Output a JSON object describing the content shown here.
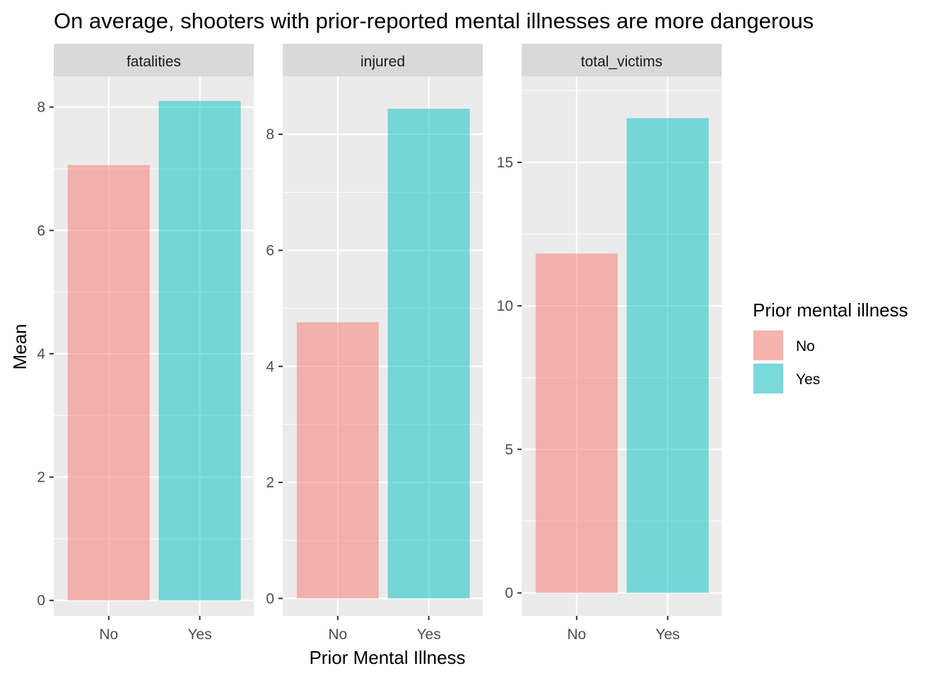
{
  "chart_data": {
    "type": "bar",
    "title": "On average, shooters with prior-reported mental illnesses are more dangerous",
    "xlabel": "Prior Mental Illness",
    "ylabel": "Mean",
    "categories": [
      "No",
      "Yes"
    ],
    "grid": true,
    "legend_position": "right",
    "legend": {
      "title": "Prior mental illness",
      "entries": [
        {
          "label": "No",
          "color": "#F8766D"
        },
        {
          "label": "Yes",
          "color": "#00BFC4"
        }
      ]
    },
    "facets": [
      {
        "strip": "fatalities",
        "ylim": [
          -0.25,
          8.5
        ],
        "ticks": [
          0,
          2,
          4,
          6,
          8
        ],
        "tick_labels": [
          "0",
          "2",
          "4",
          "6",
          "8"
        ],
        "values": [
          7.06,
          8.1
        ]
      },
      {
        "strip": "injured",
        "ylim": [
          -0.3,
          9.0
        ],
        "ticks": [
          0,
          2,
          4,
          6,
          8
        ],
        "tick_labels": [
          "0",
          "2",
          "4",
          "6",
          "8"
        ],
        "values": [
          4.76,
          8.44
        ]
      },
      {
        "strip": "total_victims",
        "ylim": [
          -0.8,
          18.0
        ],
        "ticks": [
          0,
          5,
          10,
          15
        ],
        "tick_labels": [
          "0",
          "5",
          "10",
          "15"
        ],
        "values": [
          11.82,
          16.54
        ]
      }
    ],
    "colors": {
      "No": "#F8766D",
      "Yes": "#00BFC4",
      "panel_bg": "#EBEBEB",
      "strip_bg": "#D9D9D9"
    }
  }
}
